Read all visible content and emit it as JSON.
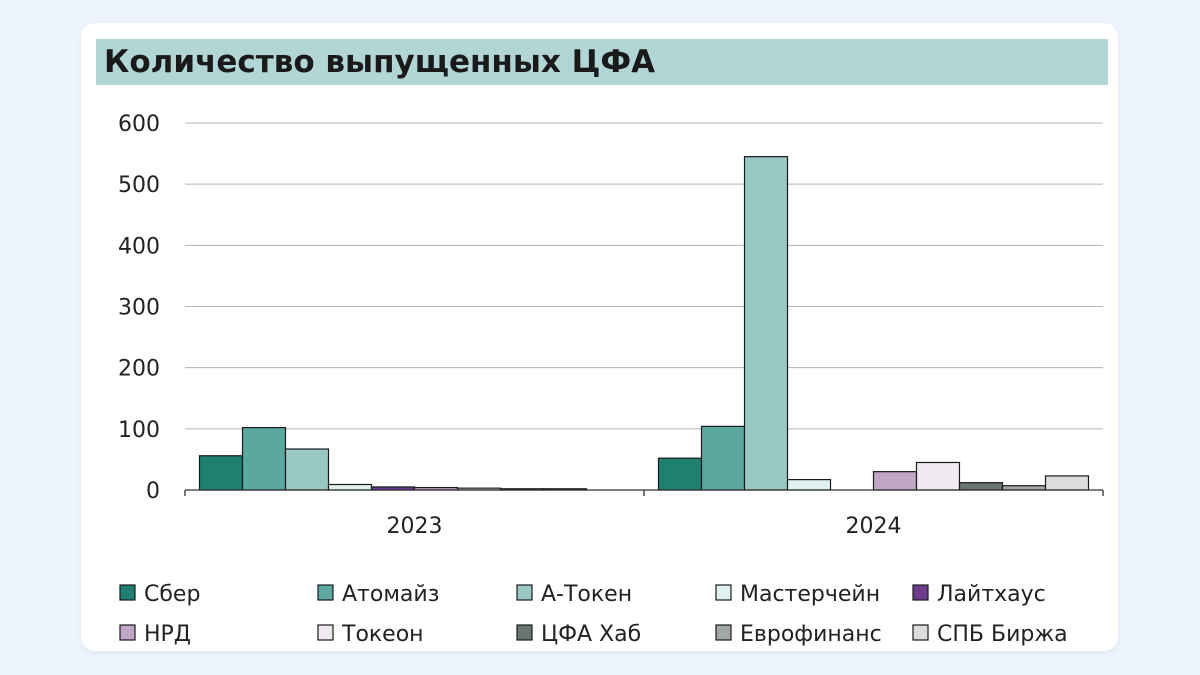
{
  "title": "Количество выпущенных ЦФА",
  "chart_data": {
    "type": "bar",
    "title": "Количество выпущенных ЦФА",
    "xlabel": "",
    "ylabel": "",
    "categories": [
      "2023",
      "2024"
    ],
    "ylim": [
      0,
      600
    ],
    "yticks": [
      0,
      100,
      200,
      300,
      400,
      500,
      600
    ],
    "grid": true,
    "legend_position": "bottom",
    "series": [
      {
        "name": "Сбер",
        "color": "#1f8072",
        "values": [
          56,
          52
        ]
      },
      {
        "name": "Атомайз",
        "color": "#5ba8a0",
        "values": [
          102,
          104
        ]
      },
      {
        "name": "А-Токен",
        "color": "#9ac9c4",
        "values": [
          67,
          545
        ]
      },
      {
        "name": "Мастерчейн",
        "color": "#dff2f1",
        "values": [
          9,
          17
        ]
      },
      {
        "name": "Лайтхаус",
        "color": "#6d3b8e",
        "values": [
          5,
          0
        ]
      },
      {
        "name": "НРД",
        "color": "#c0a7c6",
        "values": [
          4,
          30
        ]
      },
      {
        "name": "Токеон",
        "color": "#efeaef",
        "values": [
          3,
          45
        ]
      },
      {
        "name": "ЦФА Хаб",
        "color": "#6a756f",
        "values": [
          2,
          12
        ]
      },
      {
        "name": "Еврофинанс",
        "color": "#a2a7a4",
        "values": [
          2,
          7
        ]
      },
      {
        "name": "СПБ Биржа",
        "color": "#dcdcdc",
        "values": [
          0,
          23
        ]
      }
    ]
  }
}
